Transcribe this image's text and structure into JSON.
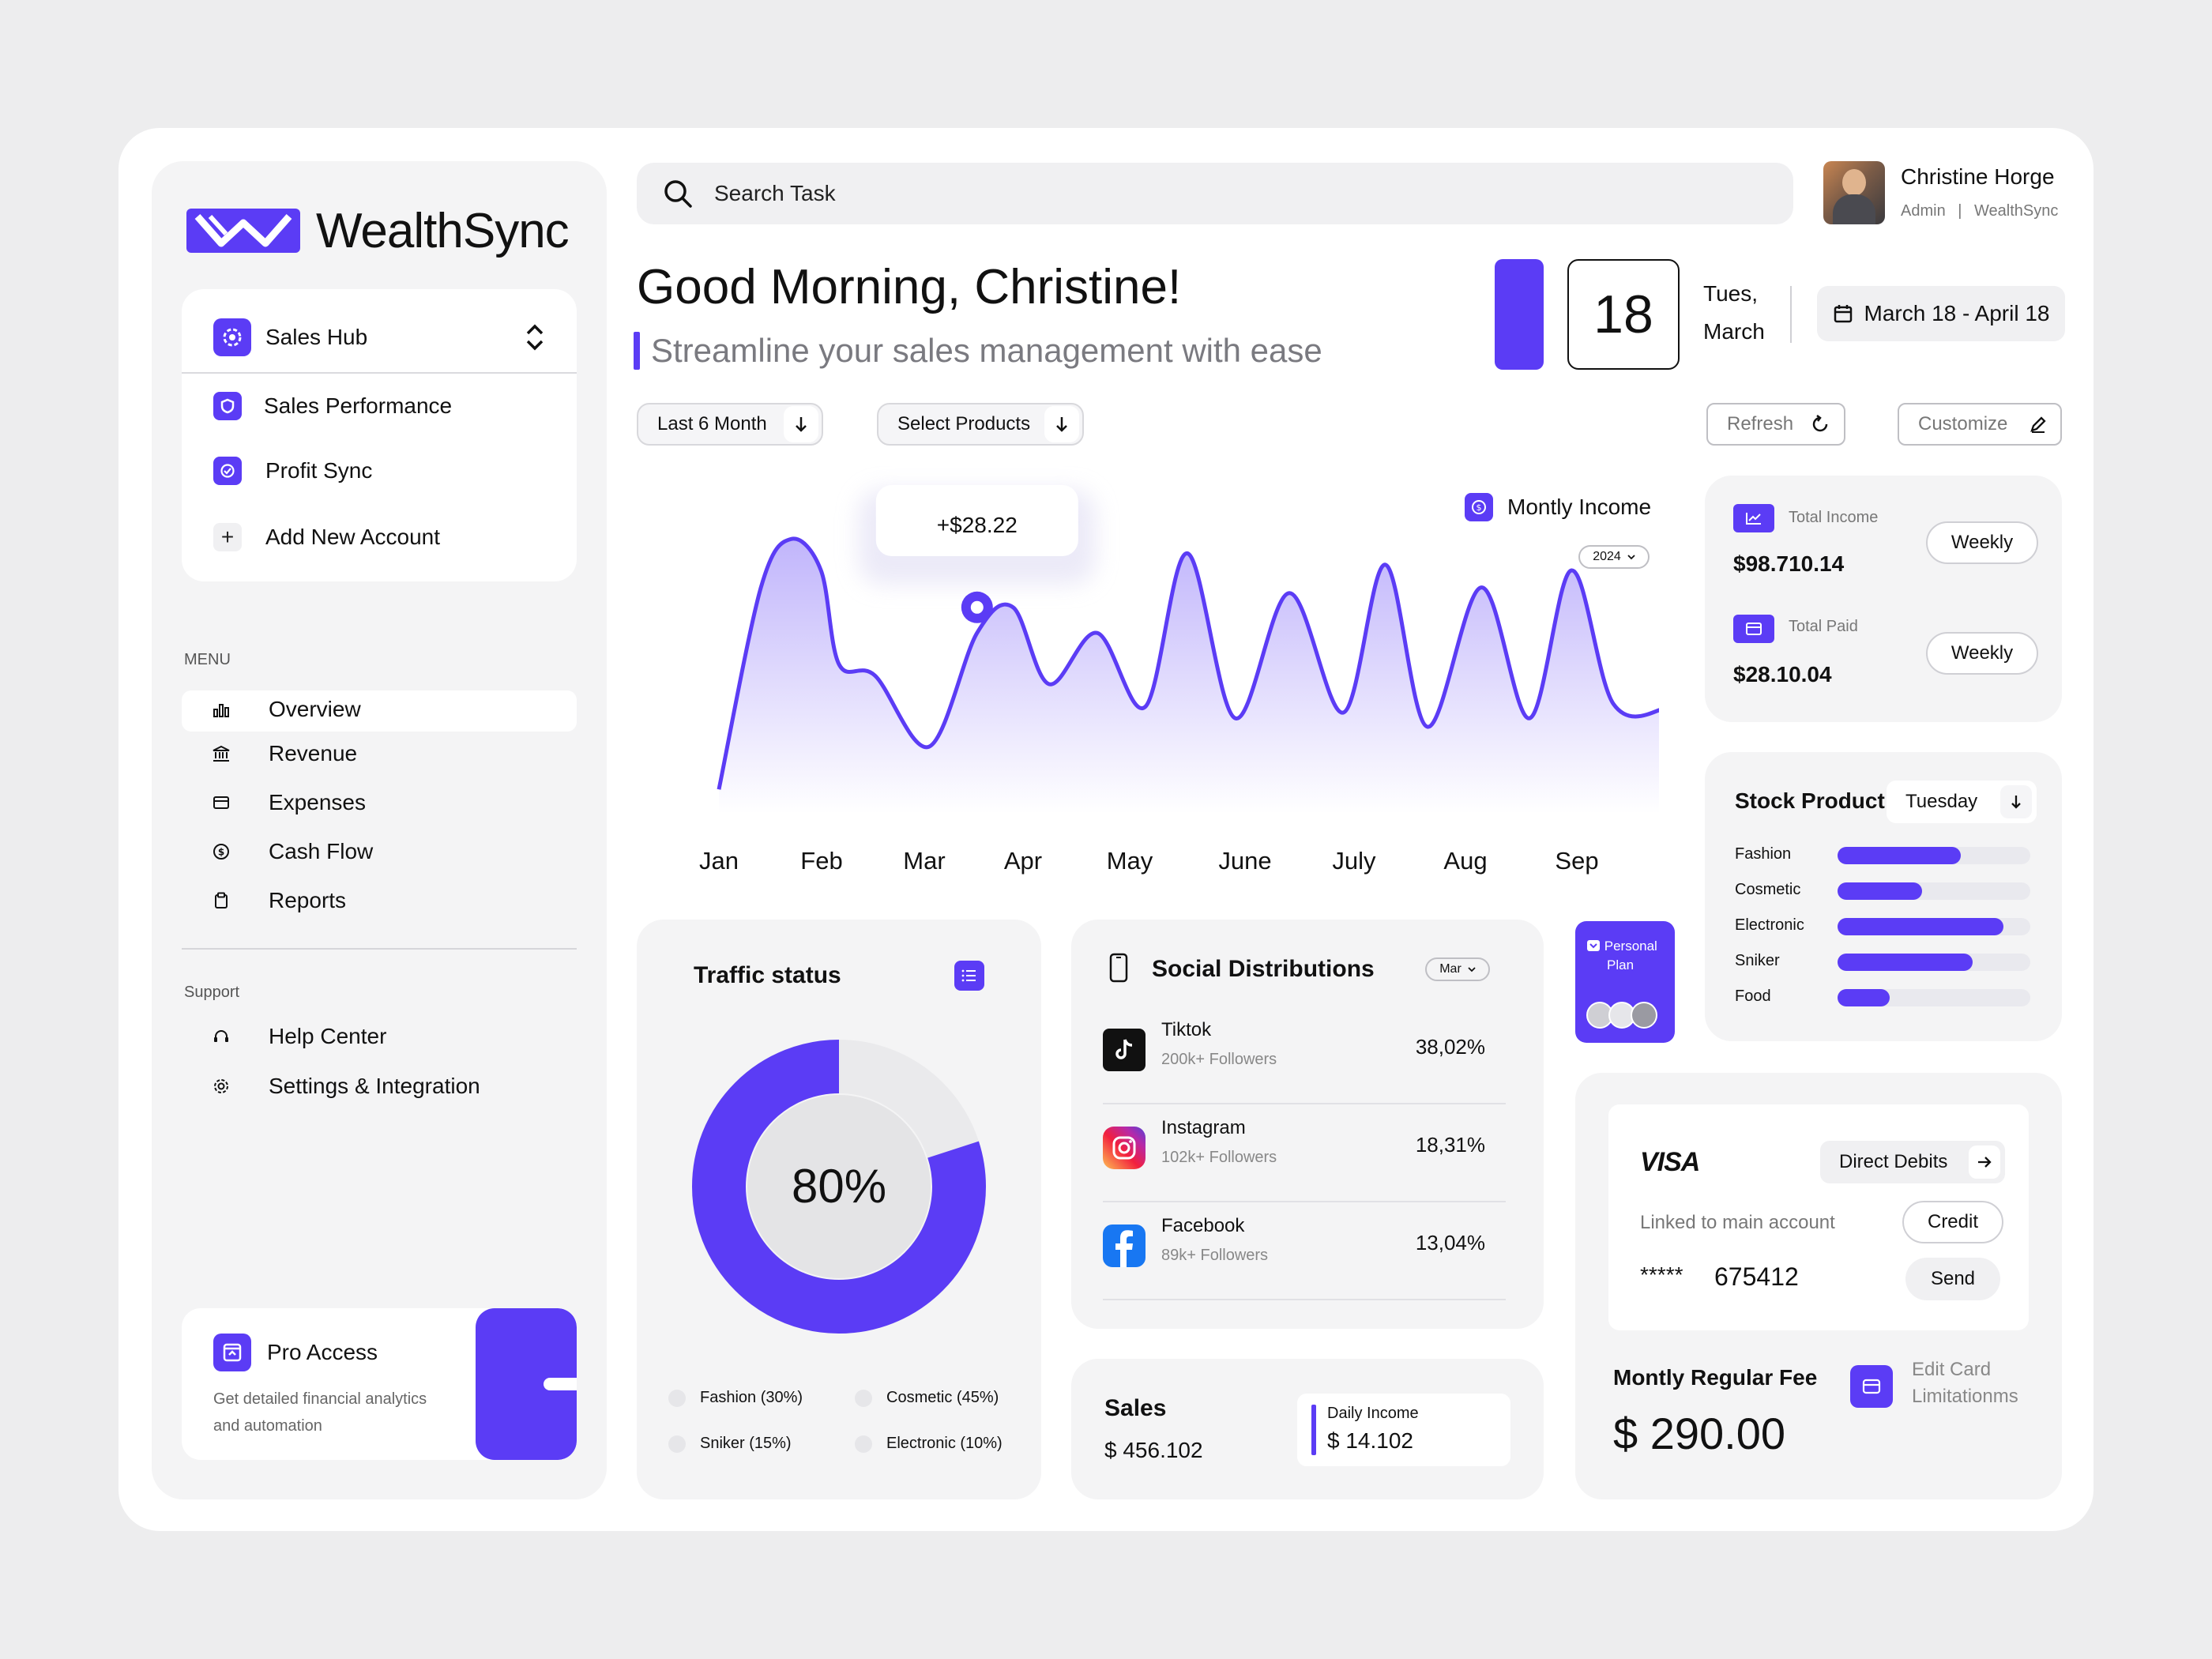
{
  "brand": {
    "name": "WealthSync",
    "accent": "#5B3CF5"
  },
  "workspace": {
    "selected": "Sales Hub",
    "items": [
      {
        "label": "Sales Performance",
        "icon": "shield-icon"
      },
      {
        "label": "Profit Sync",
        "icon": "check-circle-icon"
      },
      {
        "label": "Add New Account",
        "icon": "plus-icon"
      }
    ]
  },
  "menu": {
    "heading": "MENU",
    "items": [
      {
        "label": "Overview",
        "icon": "bar-chart-icon",
        "active": true
      },
      {
        "label": "Revenue",
        "icon": "bank-icon"
      },
      {
        "label": "Expenses",
        "icon": "wallet-icon"
      },
      {
        "label": "Cash Flow",
        "icon": "coin-icon"
      },
      {
        "label": "Reports",
        "icon": "clipboard-icon"
      }
    ]
  },
  "support": {
    "heading": "Support",
    "items": [
      {
        "label": "Help Center",
        "icon": "headset-icon"
      },
      {
        "label": "Settings & Integration",
        "icon": "gear-icon"
      }
    ]
  },
  "pro": {
    "title": "Pro Access",
    "line1": "Get detailed financial analytics",
    "line2": "and automation"
  },
  "search": {
    "placeholder": "Search Task"
  },
  "user": {
    "name": "Christine Horge",
    "role": "Admin",
    "org": "WealthSync"
  },
  "greeting": {
    "title": "Good Morning, Christine!",
    "subtitle": "Streamline your sales management with ease"
  },
  "date": {
    "day": "18",
    "weekday": "Tues,",
    "month": "March",
    "range": "March 18 - April 18"
  },
  "filters": {
    "period": "Last 6 Month",
    "products": "Select Products",
    "refresh": "Refresh",
    "customize": "Customize"
  },
  "income_chart": {
    "legend": "Montly Income",
    "year": "2024",
    "tooltip": "+$28.22"
  },
  "chart_data": {
    "type": "area",
    "categories": [
      "Jan",
      "Feb",
      "Mar",
      "Apr",
      "May",
      "June",
      "July",
      "Aug",
      "Sep"
    ],
    "x": [
      0,
      0.35,
      0.6,
      0.85,
      1.0,
      1.3,
      1.75,
      2.15,
      2.45,
      2.75,
      3.15,
      3.55,
      3.9,
      4.3,
      4.75,
      5.2,
      5.55,
      5.9,
      6.35,
      6.75,
      7.1,
      7.45,
      7.9,
      8.3,
      8.55
    ],
    "values": [
      3,
      74,
      91,
      80,
      47,
      43,
      18,
      58,
      67,
      40,
      58,
      32,
      86,
      28,
      72,
      30,
      82,
      25,
      74,
      28,
      80,
      33,
      32,
      45,
      13
    ],
    "highlight": {
      "x": 2.15,
      "value": 67,
      "label": "+$28.22"
    },
    "ylim": [
      0,
      100
    ]
  },
  "totals": [
    {
      "label": "Total Income",
      "value": "$98.710.14",
      "button": "Weekly",
      "icon": "trend-icon"
    },
    {
      "label": "Total Paid",
      "value": "$28.10.04",
      "button": "Weekly",
      "icon": "folder-icon"
    }
  ],
  "stock": {
    "title": "Stock Product",
    "day": "Tuesday",
    "items": [
      {
        "name": "Fashion",
        "value": 0.64
      },
      {
        "name": "Cosmetic",
        "value": 0.44
      },
      {
        "name": "Electronic",
        "value": 0.86
      },
      {
        "name": "Sniker",
        "value": 0.7
      },
      {
        "name": "Food",
        "value": 0.27
      }
    ]
  },
  "traffic": {
    "title": "Traffic status",
    "percent": 80,
    "percent_label": "80%",
    "legend": [
      "Fashion (30%)",
      "Cosmetic (45%)",
      "Sniker (15%)",
      "Electronic (10%)"
    ]
  },
  "social": {
    "title": "Social Distributions",
    "month": "Mar",
    "items": [
      {
        "name": "Tiktok",
        "followers": "200k+ Followers",
        "share": "38,02%"
      },
      {
        "name": "Instagram",
        "followers": "102k+ Followers",
        "share": "18,31%"
      },
      {
        "name": "Facebook",
        "followers": "89k+ Followers",
        "share": "13,04%"
      }
    ]
  },
  "personal_plan": {
    "label1": "Personal",
    "label2": "Plan"
  },
  "sales": {
    "title": "Sales",
    "value": "$ 456.102",
    "daily_label": "Daily Income",
    "daily_value": "$ 14.102"
  },
  "card": {
    "brand": "VISA",
    "direct": "Direct Debits",
    "linked": "Linked to main account",
    "credit": "Credit",
    "mask": "*****",
    "number": "675412",
    "send": "Send",
    "fee_title": "Montly Regular Fee",
    "fee_value": "$ 290.00",
    "edit1": "Edit Card",
    "edit2": "Limitationms"
  }
}
